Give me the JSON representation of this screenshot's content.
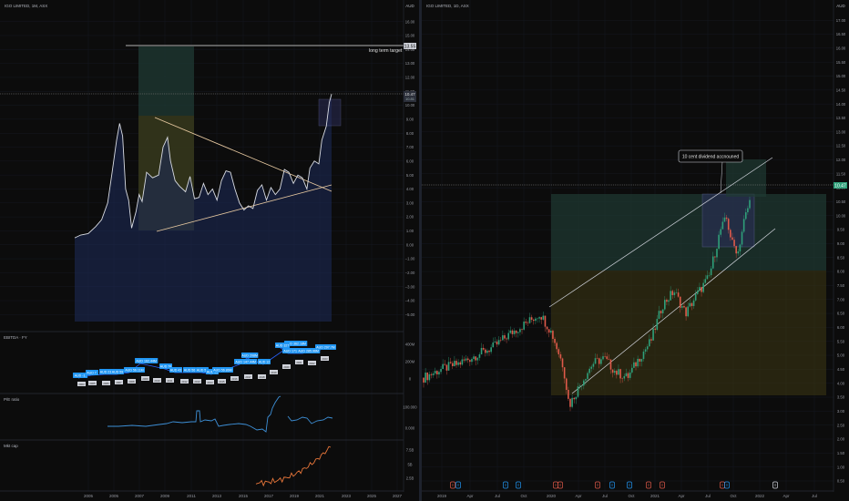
{
  "colors": {
    "background": "#0c0c0c",
    "grid": "#1a1d26",
    "price_line": "#d9dce3",
    "trend_line": "#e6c8a0",
    "blue_area": "#1c2a55",
    "green_zone": "#1f3a33",
    "yellow_zone": "#3a3514",
    "candle_up": "#2fa07a",
    "candle_down": "#e05a4a",
    "badge_blue": "#2196f3",
    "ebitda_line": "#2962ff",
    "pe_line": "#3d8fd6",
    "mktcap_line": "#e8763a"
  },
  "left": {
    "title": "IGO LIMITED, 1M, ASX",
    "currency": "AUD",
    "annotation": "long term target",
    "target_badge": "13.55",
    "price_badge": "10.47",
    "price_badge_sub": "10.81",
    "price_ticks": [
      "16.00",
      "15.00",
      "14.00",
      "13.00",
      "12.00",
      "11.00",
      "10.00",
      "9.00",
      "8.00",
      "7.00",
      "6.00",
      "5.00",
      "4.00",
      "3.00",
      "2.00",
      "1.00",
      "0.00",
      "−1.00",
      "−2.00",
      "−3.00",
      "−4.00",
      "−5.00"
    ],
    "year_ticks": [
      "2005",
      "2005",
      "2007",
      "2009",
      "2011",
      "2013",
      "2015",
      "2017",
      "2019",
      "2021",
      "2023",
      "2025",
      "2027"
    ],
    "ebitda": {
      "title": "EBITDA · FY",
      "ticks": [
        "400M",
        "200M",
        "0"
      ],
      "badges": [
        "AUD -1.",
        "AUD 7.",
        "AUD 23",
        "AUD 59",
        "AUD 56.11M",
        "AUD 162.44M",
        "AUD 78",
        "AUD 43",
        "AUD 56",
        "AUD 54",
        "AUD 33",
        "AUD 56.86M",
        "AUD 147.44M",
        "AUD 208M",
        "AUD 12",
        "AUD 362.18M",
        "AUD 327",
        "AUD 171.65M",
        "AUD 285.96M",
        "AUD 297.7M"
      ],
      "small": [
        "2003",
        "2005",
        "2006",
        "2007",
        "2008",
        "2009",
        "2010",
        "2011",
        "2012",
        "2013",
        "2014",
        "2015",
        "2016",
        "2017",
        "2018",
        "2019",
        "2020",
        "2021",
        "2022",
        "2023"
      ]
    },
    "pe": {
      "title": "P/E ratio",
      "ticks": [
        "100.000",
        "0.000"
      ]
    },
    "mktcap": {
      "title": "Mkt cap",
      "ticks": [
        "7.5B",
        "5B",
        "2.5B"
      ]
    },
    "chart_data": {
      "type": "line",
      "title": "IGO LIMITED, 1M, ASX",
      "ylabel": "AUD",
      "ylim": [
        -5.5,
        16.5
      ],
      "xlim": [
        2004.2,
        2027.3
      ],
      "x": [
        2004.6,
        2005.0,
        2005.5,
        2006.0,
        2006.4,
        2006.8,
        2007.1,
        2007.4,
        2007.6,
        2007.8,
        2008.0,
        2008.2,
        2008.4,
        2008.7,
        2008.9,
        2009.1,
        2009.4,
        2009.8,
        2010.2,
        2010.5,
        2010.8,
        2011.0,
        2011.3,
        2011.6,
        2012.0,
        2012.3,
        2012.6,
        2012.9,
        2013.2,
        2013.5,
        2013.8,
        2014.1,
        2014.4,
        2014.7,
        2015.0,
        2015.3,
        2015.6,
        2015.9,
        2016.2,
        2016.5,
        2016.8,
        2017.1,
        2017.4,
        2017.7,
        2018.0,
        2018.3,
        2018.6,
        2018.9,
        2019.2,
        2019.5,
        2019.8,
        2020.1,
        2020.3,
        2020.6,
        2020.9,
        2021.1,
        2021.4,
        2021.6,
        2021.75
      ],
      "y": [
        0.5,
        0.7,
        0.8,
        1.3,
        1.8,
        3.0,
        5.2,
        7.5,
        8.7,
        7.8,
        4.0,
        3.2,
        1.2,
        2.4,
        3.6,
        3.1,
        5.2,
        4.8,
        5.0,
        7.0,
        7.7,
        6.0,
        4.6,
        4.2,
        3.8,
        4.9,
        3.3,
        3.4,
        4.4,
        3.6,
        4.0,
        3.2,
        4.6,
        5.3,
        5.2,
        4.0,
        3.0,
        2.5,
        2.8,
        2.6,
        3.9,
        4.3,
        3.2,
        4.1,
        3.6,
        4.0,
        5.4,
        5.2,
        4.4,
        5.0,
        4.8,
        4.0,
        5.5,
        6.0,
        5.8,
        7.5,
        8.5,
        10.2,
        10.8
      ],
      "annotations": [
        "long term target"
      ]
    }
  },
  "right": {
    "title": "IGO LIMITED, 1D, ASX",
    "currency": "AUD",
    "annotation": "10 cent dividend accnouned",
    "price_badge": "10.47",
    "price_ticks": [
      "17.00",
      "16.50",
      "16.00",
      "15.50",
      "15.00",
      "14.50",
      "14.00",
      "13.50",
      "13.00",
      "12.50",
      "12.00",
      "11.50",
      "11.00",
      "10.50",
      "10.00",
      "9.50",
      "9.00",
      "8.50",
      "8.00",
      "7.50",
      "7.00",
      "6.50",
      "6.00",
      "5.50",
      "5.00",
      "4.50",
      "4.00",
      "3.50",
      "3.00",
      "2.50",
      "2.00",
      "1.50",
      "1.00",
      "0.50"
    ],
    "date_ticks": [
      "2019",
      "Apr",
      "Jul",
      "Oct",
      "2020",
      "Apr",
      "Jul",
      "Oct",
      "2021",
      "Apr",
      "Jul",
      "Oct",
      "2022",
      "Apr",
      "Jul"
    ],
    "chart_data": {
      "type": "line",
      "title": "IGO LIMITED, 1D, ASX",
      "ylabel": "AUD",
      "ylim": [
        0.5,
        17.3
      ],
      "x": [
        2019.0,
        2019.15,
        2019.3,
        2019.45,
        2019.6,
        2019.75,
        2019.9,
        2020.0,
        2020.1,
        2020.2,
        2020.25,
        2020.35,
        2020.45,
        2020.55,
        2020.65,
        2020.75,
        2020.85,
        2020.95,
        2021.05,
        2021.15,
        2021.25,
        2021.35,
        2021.45,
        2021.55,
        2021.6,
        2021.65,
        2021.7,
        2021.75,
        2021.8
      ],
      "y": [
        4.2,
        4.5,
        4.7,
        5.0,
        5.3,
        5.8,
        6.2,
        6.5,
        5.8,
        4.6,
        3.2,
        4.0,
        4.7,
        4.9,
        4.4,
        4.2,
        4.9,
        5.5,
        6.8,
        7.3,
        6.5,
        7.2,
        7.8,
        9.5,
        9.9,
        9.0,
        8.7,
        9.8,
        10.5
      ],
      "annotations": [
        "10 cent dividend accnouned"
      ]
    }
  }
}
